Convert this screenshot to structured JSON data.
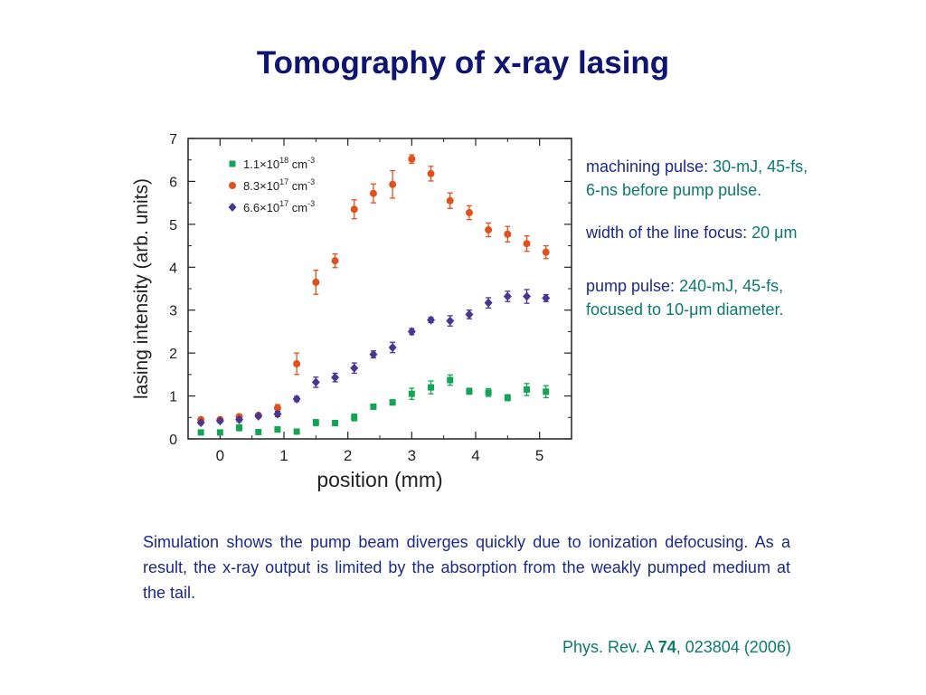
{
  "slide": {
    "title": "Tomography of x-ray lasing",
    "notes": [
      {
        "label": "machining pulse: ",
        "value_line1": "30-mJ, 45-fs,",
        "value_line2": "6-ns before pump pulse."
      },
      {
        "label": "width of the line focus: ",
        "value": "20 μm"
      },
      {
        "label": "pump pulse: ",
        "value_line1": "240-mJ, 45-fs,",
        "value_line2": "focused  to 10-μm diameter."
      }
    ],
    "paragraph": "Simulation shows the pump beam diverges quickly due to ionization defocusing. As a result, the x-ray output is limited by the absorption from the weakly pumped medium at the tail.",
    "citation": {
      "journal": "Phys. Rev. A ",
      "volume": "74",
      "rest": ", 023804 (2006)"
    }
  },
  "colors": {
    "title": "#0f1470",
    "text": "#1b2a8a",
    "accent": "#0d7a6e"
  },
  "chart_data": {
    "type": "scatter",
    "xlabel": "position (mm)",
    "ylabel": "lasing intensity (arb. units)",
    "xlim": [
      -0.5,
      5.5
    ],
    "ylim": [
      0,
      7
    ],
    "xticks": [
      0,
      1,
      2,
      3,
      4,
      5
    ],
    "yticks": [
      0,
      1,
      2,
      3,
      4,
      5,
      6,
      7
    ],
    "legend_position": "top-left",
    "series": [
      {
        "name": "1.1×10",
        "sup": "18",
        "unit": " cm",
        "unit_sup": "-3",
        "marker": "square",
        "color": "#15a455",
        "x": [
          -0.3,
          0.0,
          0.3,
          0.6,
          0.9,
          1.2,
          1.5,
          1.8,
          2.1,
          2.4,
          2.7,
          3.0,
          3.3,
          3.6,
          3.9,
          4.2,
          4.5,
          4.8,
          5.1
        ],
        "y": [
          0.15,
          0.15,
          0.26,
          0.16,
          0.22,
          0.17,
          0.38,
          0.37,
          0.5,
          0.75,
          0.85,
          1.05,
          1.2,
          1.37,
          1.11,
          1.08,
          0.96,
          1.15,
          1.1
        ],
        "err": [
          0.04,
          0.04,
          0.07,
          0.04,
          0.06,
          0.05,
          0.07,
          0.06,
          0.08,
          0.06,
          0.06,
          0.13,
          0.15,
          0.12,
          0.07,
          0.09,
          0.07,
          0.14,
          0.14
        ]
      },
      {
        "name": "8.3×10",
        "sup": "17",
        "unit": " cm",
        "unit_sup": "-3",
        "marker": "circle",
        "color": "#e0521c",
        "x": [
          -0.3,
          0.0,
          0.3,
          0.6,
          0.9,
          1.2,
          1.5,
          1.8,
          2.1,
          2.4,
          2.7,
          3.0,
          3.3,
          3.6,
          3.9,
          4.2,
          4.5,
          4.8,
          5.1
        ],
        "y": [
          0.45,
          0.45,
          0.52,
          0.55,
          0.72,
          1.75,
          3.65,
          4.15,
          5.35,
          5.72,
          5.93,
          6.52,
          6.18,
          5.55,
          5.27,
          4.87,
          4.77,
          4.55,
          4.35
        ],
        "err": [
          0.04,
          0.04,
          0.05,
          0.04,
          0.08,
          0.25,
          0.28,
          0.16,
          0.22,
          0.22,
          0.32,
          0.1,
          0.17,
          0.18,
          0.16,
          0.16,
          0.18,
          0.18,
          0.15
        ]
      },
      {
        "name": "6.6×10",
        "sup": "17",
        "unit": " cm",
        "unit_sup": "-3",
        "marker": "diamond",
        "color": "#4a3593",
        "x": [
          -0.3,
          0.0,
          0.3,
          0.6,
          0.9,
          1.2,
          1.5,
          1.8,
          2.1,
          2.4,
          2.7,
          3.0,
          3.3,
          3.6,
          3.9,
          4.2,
          4.5,
          4.8,
          5.1
        ],
        "y": [
          0.38,
          0.42,
          0.45,
          0.53,
          0.58,
          0.93,
          1.32,
          1.43,
          1.65,
          1.97,
          2.13,
          2.5,
          2.77,
          2.75,
          2.9,
          3.17,
          3.32,
          3.32,
          3.28
        ],
        "err": [
          0.04,
          0.04,
          0.05,
          0.04,
          0.06,
          0.06,
          0.12,
          0.1,
          0.12,
          0.08,
          0.12,
          0.07,
          0.06,
          0.12,
          0.1,
          0.12,
          0.12,
          0.16,
          0.08
        ]
      }
    ]
  }
}
